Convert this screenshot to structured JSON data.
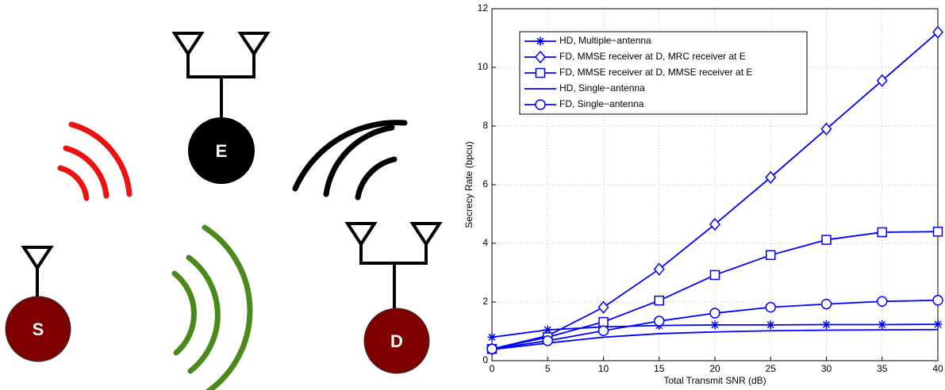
{
  "diagram": {
    "nodes": [
      {
        "label": "S"
      },
      {
        "label": "E"
      },
      {
        "label": "D"
      }
    ]
  },
  "chart_data": {
    "type": "line",
    "xlabel": "Total Transmit SNR (dB)",
    "ylabel": "Secrecy Rate (bpcu)",
    "x": [
      0,
      5,
      10,
      15,
      20,
      25,
      30,
      35,
      40
    ],
    "xlim": [
      0,
      40
    ],
    "xticks": [
      0,
      5,
      10,
      15,
      20,
      25,
      30,
      35,
      40
    ],
    "ylim": [
      0,
      12
    ],
    "yticks": [
      0,
      2,
      4,
      6,
      8,
      10,
      12
    ],
    "grid": true,
    "legend": "upper left",
    "series": [
      {
        "name": "HD, Multiple−antenna",
        "color": "#0000ff",
        "marker": "asterisk",
        "values": [
          0.8,
          1.05,
          1.15,
          1.2,
          1.22,
          1.22,
          1.23,
          1.23,
          1.24
        ]
      },
      {
        "name": "FD, MMSE receiver at D, MRC receiver at E",
        "color": "#0000ff",
        "marker": "diamond",
        "values": [
          0.4,
          0.85,
          1.82,
          3.12,
          4.65,
          6.25,
          7.9,
          9.55,
          11.2
        ]
      },
      {
        "name": "FD, MMSE receiver at D, MMSE receiver at E",
        "color": "#0000ff",
        "marker": "square",
        "values": [
          0.4,
          0.8,
          1.32,
          2.05,
          2.92,
          3.6,
          4.12,
          4.38,
          4.4
        ]
      },
      {
        "name": "HD, Single−antenna",
        "color": "#0000ff",
        "marker": "none",
        "values": [
          0.38,
          0.6,
          0.8,
          0.92,
          0.98,
          1.02,
          1.04,
          1.05,
          1.06
        ]
      },
      {
        "name": "FD, Single−antenna",
        "color": "#0000ff",
        "marker": "circle",
        "values": [
          0.4,
          0.68,
          1.02,
          1.35,
          1.62,
          1.82,
          1.93,
          2.02,
          2.06
        ]
      }
    ]
  }
}
